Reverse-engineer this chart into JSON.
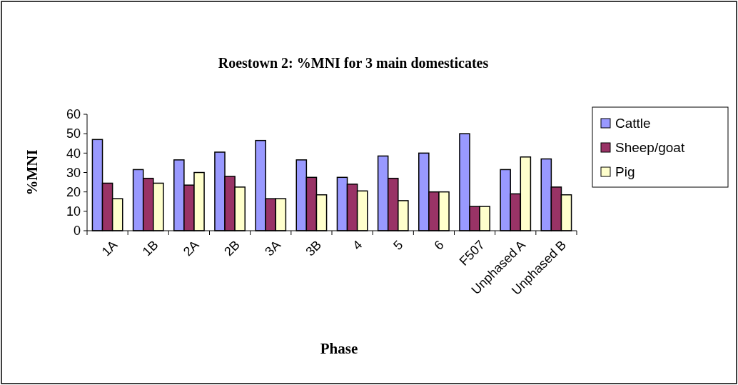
{
  "chart_data": {
    "type": "bar",
    "title": "Roestown 2: %MNI for 3 main domesticates",
    "xlabel": "Phase",
    "ylabel": "%MNI",
    "categories": [
      "1A",
      "1B",
      "2A",
      "2B",
      "3A",
      "3B",
      "4",
      "5",
      "6",
      "F507",
      "Unphased A",
      "Unphased B"
    ],
    "series": [
      {
        "name": "Cattle",
        "color": "#9999ff",
        "values": [
          47,
          31.5,
          36.5,
          40.5,
          46.5,
          36.5,
          27.5,
          38.5,
          40,
          50,
          31.5,
          37
        ]
      },
      {
        "name": "Sheep/goat",
        "color": "#993366",
        "values": [
          24.5,
          27,
          23.5,
          28,
          16.5,
          27.5,
          24,
          27,
          20,
          12.5,
          19,
          22.5
        ]
      },
      {
        "name": "Pig",
        "color": "#ffffcc",
        "values": [
          16.5,
          24.5,
          30,
          22.5,
          16.5,
          18.5,
          20.5,
          15.5,
          20,
          12.5,
          38,
          18.5
        ]
      }
    ],
    "ylim": [
      0,
      60
    ],
    "yticks": [
      0,
      10,
      20,
      30,
      40,
      50,
      60
    ],
    "grid": false,
    "legend": "right"
  }
}
